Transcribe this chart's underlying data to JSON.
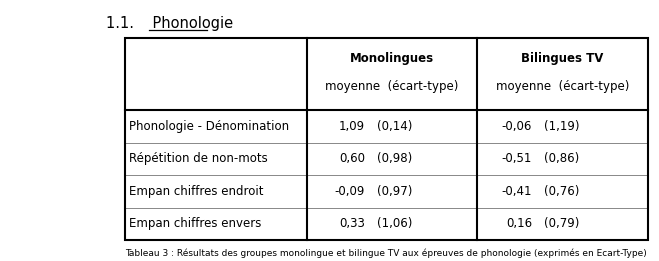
{
  "title_num": "1.1.",
  "title_word": "Phonologie",
  "col_headers": [
    "Monolingues",
    "Bilingues TV"
  ],
  "col_subheaders": [
    "moyenne  (écart-type)",
    "moyenne  (écart-type)"
  ],
  "row_labels": [
    "Phonologie - Dénomination",
    "Répétition de non-mots",
    "Empan chiffres endroit",
    "Empan chiffres envers"
  ],
  "mono_mean": [
    "1,09",
    "0,60",
    "-0,09",
    "0,33"
  ],
  "mono_sd": [
    "(0,14)",
    "(0,98)",
    "(0,97)",
    "(1,06)"
  ],
  "bili_mean": [
    "-0,06",
    "-0,51",
    "-0,41",
    "0,16"
  ],
  "bili_sd": [
    "(1,19)",
    "(0,86)",
    "(0,76)",
    "(0,79)"
  ],
  "bg_color": "#ffffff",
  "text_color": "#000000",
  "header_fontsize": 8.5,
  "body_fontsize": 8.5,
  "title_fontsize": 10.5,
  "caption_text": "Tableau 3 : Résultats des groupes monolingue et bilingue TV aux épreuves de phonologie (exprimés en Ecart-Type)"
}
